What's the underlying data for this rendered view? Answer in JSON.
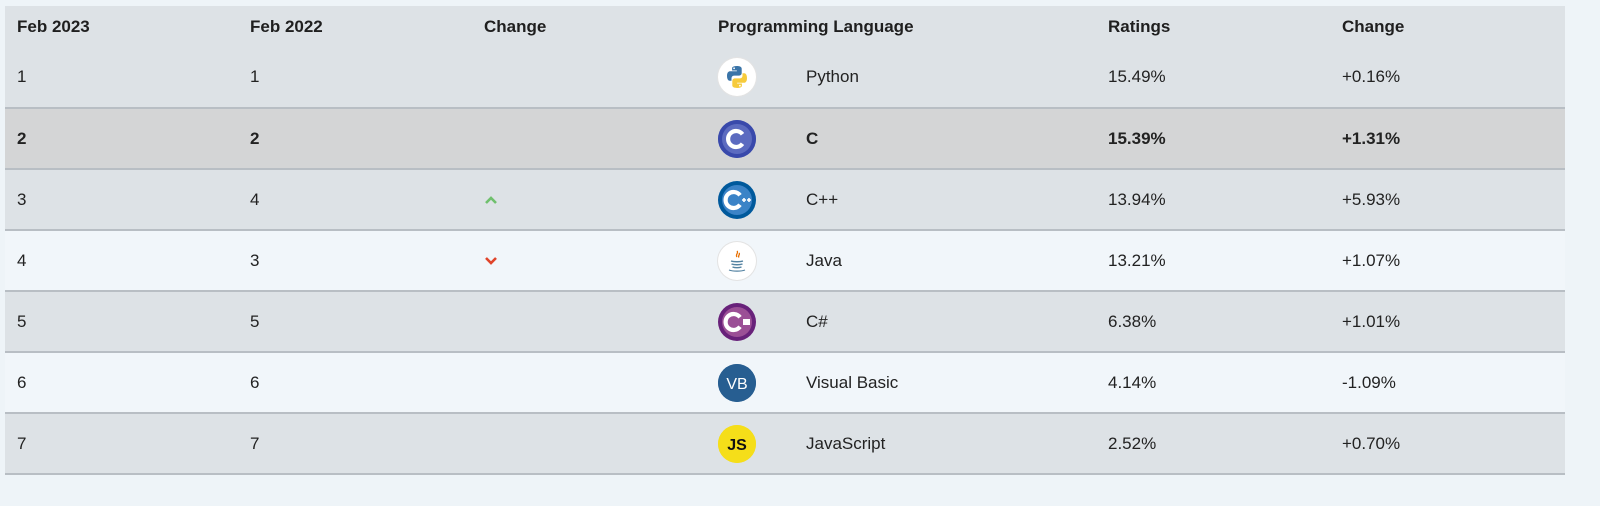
{
  "headers": [
    "Feb 2023",
    "Feb 2022",
    "Change",
    "Programming Language",
    "Ratings",
    "Change"
  ],
  "rows": [
    {
      "rank_now": "1",
      "rank_prev": "1",
      "trend": "none",
      "logo_icon": "python-logo-icon",
      "language": "Python",
      "rating": "15.49%",
      "change": "+0.16%"
    },
    {
      "rank_now": "2",
      "rank_prev": "2",
      "trend": "none",
      "logo_icon": "c-logo-icon",
      "language": "C",
      "rating": "15.39%",
      "change": "+1.31%"
    },
    {
      "rank_now": "3",
      "rank_prev": "4",
      "trend": "up",
      "logo_icon": "cpp-logo-icon",
      "language": "C++",
      "rating": "13.94%",
      "change": "+5.93%"
    },
    {
      "rank_now": "4",
      "rank_prev": "3",
      "trend": "down",
      "logo_icon": "java-logo-icon",
      "language": "Java",
      "rating": "13.21%",
      "change": "+1.07%"
    },
    {
      "rank_now": "5",
      "rank_prev": "5",
      "trend": "none",
      "logo_icon": "csharp-logo-icon",
      "language": "C#",
      "rating": "6.38%",
      "change": "+1.01%"
    },
    {
      "rank_now": "6",
      "rank_prev": "6",
      "trend": "none",
      "logo_icon": "visual-basic-logo-icon",
      "language": "Visual Basic",
      "rating": "4.14%",
      "change": "-1.09%"
    },
    {
      "rank_now": "7",
      "rank_prev": "7",
      "trend": "none",
      "logo_icon": "javascript-logo-icon",
      "language": "JavaScript",
      "rating": "2.52%",
      "change": "+0.70%"
    }
  ],
  "logo_text": {
    "vb": "VB",
    "js": "JS"
  },
  "colors": {
    "trend_up": "#6fc06d",
    "trend_down": "#e0442a",
    "highlight_row": "#d4d5d6"
  }
}
